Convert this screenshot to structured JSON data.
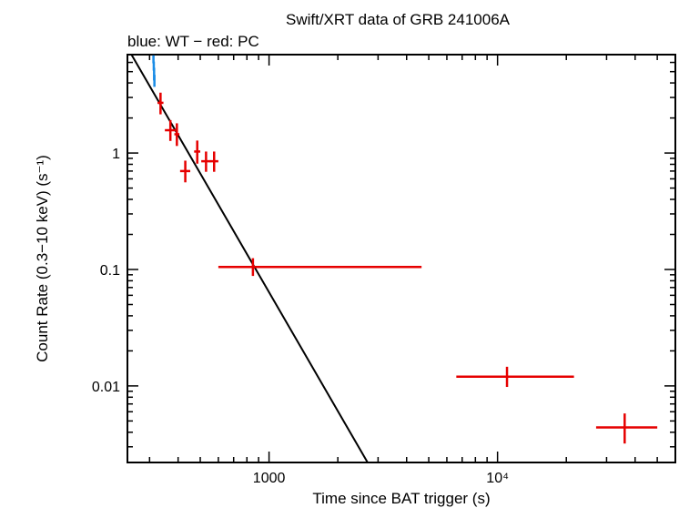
{
  "chart_data": {
    "type": "scatter",
    "title": "Swift/XRT data of GRB 241006A",
    "subtitle": "blue: WT − red: PC",
    "xlabel": "Time since BAT trigger (s)",
    "ylabel": "Count Rate (0.3−10 keV) (s⁻¹)",
    "xscale": "log",
    "yscale": "log",
    "xlim": [
      240,
      60000
    ],
    "ylim": [
      0.0022,
      7.0
    ],
    "x_ticks": [
      {
        "value": 1000,
        "label": "1000"
      },
      {
        "value": 10000,
        "label": "10⁴"
      }
    ],
    "y_ticks": [
      {
        "value": 0.01,
        "label": "0.01"
      },
      {
        "value": 0.1,
        "label": "0.1"
      },
      {
        "value": 1,
        "label": "1"
      }
    ],
    "series": [
      {
        "color": "#1a8ce6",
        "points": [
          {
            "x": 312,
            "y": 6.4,
            "xerr": [
              2,
              2
            ],
            "yerr": [
              0.5,
              0.5
            ]
          },
          {
            "x": 313,
            "y": 5.6,
            "xerr": [
              2,
              2
            ],
            "yerr": [
              0.5,
              0.5
            ]
          },
          {
            "x": 314,
            "y": 4.8,
            "xerr": [
              2,
              2
            ],
            "yerr": [
              0.6,
              0.6
            ]
          },
          {
            "x": 315,
            "y": 4.2,
            "xerr": [
              2,
              2
            ],
            "yerr": [
              0.5,
              0.5
            ]
          }
        ]
      },
      {
        "color": "#e60000",
        "points": [
          {
            "x": 335,
            "y": 2.7,
            "xerr": [
              10,
              10
            ],
            "yerr": [
              0.55,
              0.6
            ]
          },
          {
            "x": 370,
            "y": 1.57,
            "xerr": [
              20,
              20
            ],
            "yerr": [
              0.3,
              0.35
            ]
          },
          {
            "x": 395,
            "y": 1.45,
            "xerr": [
              10,
              10
            ],
            "yerr": [
              0.3,
              0.35
            ]
          },
          {
            "x": 430,
            "y": 0.7,
            "xerr": [
              22,
              22
            ],
            "yerr": [
              0.14,
              0.16
            ]
          },
          {
            "x": 485,
            "y": 1.03,
            "xerr": [
              15,
              15
            ],
            "yerr": [
              0.22,
              0.25
            ]
          },
          {
            "x": 530,
            "y": 0.85,
            "xerr": [
              25,
              25
            ],
            "yerr": [
              0.16,
              0.18
            ]
          },
          {
            "x": 575,
            "y": 0.85,
            "xerr": [
              25,
              25
            ],
            "yerr": [
              0.16,
              0.18
            ]
          },
          {
            "x": 850,
            "y": 0.105,
            "xerr": [
              250,
              3800
            ],
            "yerr": [
              0.017,
              0.02
            ]
          },
          {
            "x": 11000,
            "y": 0.012,
            "xerr": [
              4400,
              10600
            ],
            "yerr": [
              0.0022,
              0.0026
            ]
          },
          {
            "x": 36000,
            "y": 0.0044,
            "xerr": [
              9000,
              14000
            ],
            "yerr": [
              0.0012,
              0.0014
            ]
          }
        ]
      }
    ],
    "model_line": {
      "color": "#000000",
      "points": [
        {
          "x": 250,
          "y": 7.0
        },
        {
          "x": 2700,
          "y": 0.0022
        }
      ]
    }
  }
}
